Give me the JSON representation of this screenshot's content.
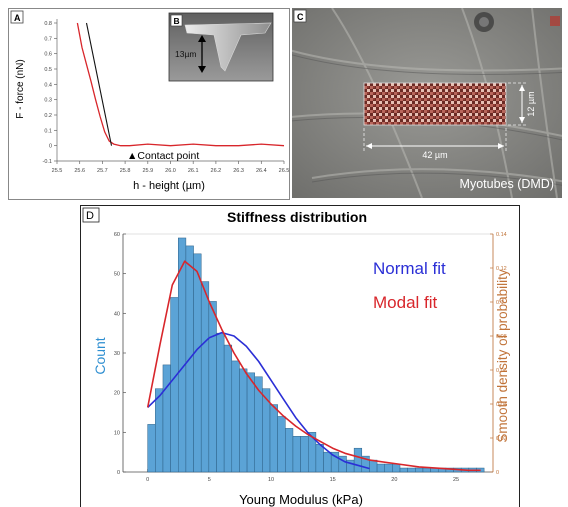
{
  "figure": {
    "panelA": {
      "label": "A",
      "ylabel": "F - force (nN)",
      "xlabel": "h - height (µm)",
      "annotation": "▲Contact point",
      "xticks": [
        "25.5",
        "25.6",
        "25.7",
        "25.8",
        "25.9",
        "26.0",
        "26.1",
        "26.2",
        "26.3",
        "26.4",
        "26.5"
      ],
      "yticks": [
        "-0.1",
        "0",
        "0.1",
        "0.2",
        "0.3",
        "0.4",
        "0.5",
        "0.6",
        "0.7",
        "0.8"
      ],
      "inset": {
        "label": "B",
        "scale_text": "13µm"
      }
    },
    "panelC": {
      "label": "C",
      "width_label": "42 µm",
      "height_label": "12 µm",
      "caption": "Myotubes (DMD)"
    },
    "panelD": {
      "label": "D",
      "legend": [
        "Normal fit",
        "Modal fit"
      ]
    }
  },
  "colors": {
    "bar": "#5ba3d6",
    "bar_edge": "#2c5f85",
    "normal_fit": "#2b2fd6",
    "modal_fit": "#d8262b",
    "left_axis_label": "#2f8fd1",
    "right_axis_label": "#c1743a"
  },
  "chart_data": [
    {
      "type": "line",
      "panel": "A",
      "xlabel": "h - height (µm)",
      "ylabel": "F - force (nN)",
      "xlim": [
        25.5,
        26.5
      ],
      "ylim": [
        -0.1,
        0.8
      ],
      "series": [
        {
          "color": "#d8262b",
          "x": [
            25.59,
            25.61,
            25.63,
            25.65,
            25.67,
            25.69,
            25.71,
            25.73,
            25.75,
            25.78,
            25.82,
            25.9,
            26.0,
            26.1,
            26.2,
            26.3,
            26.4,
            26.5
          ],
          "y": [
            0.8,
            0.64,
            0.53,
            0.42,
            0.3,
            0.19,
            0.09,
            0.03,
            0.01,
            0.0,
            0.0,
            0.01,
            0.0,
            0.01,
            0.0,
            0.0,
            0.01,
            0.0
          ]
        },
        {
          "color": "#111111",
          "x": [
            25.63,
            25.74
          ],
          "y": [
            0.8,
            0.0
          ]
        }
      ]
    },
    {
      "type": "bar",
      "panel": "D",
      "title": "Stiffness distribution",
      "xlabel": "Young Modulus (kPa)",
      "ylabel": "Count",
      "ylabel_right": "Smooth density of probability",
      "xlim": [
        -2,
        28
      ],
      "ylim": [
        0,
        60
      ],
      "ylim_right": [
        0,
        0.14
      ],
      "xticks": [
        0,
        5,
        10,
        15,
        20,
        25
      ],
      "yticks": [
        0,
        10,
        20,
        30,
        40,
        50,
        60
      ],
      "yticks_right": [
        0,
        0.02,
        0.04,
        0.06,
        0.08,
        0.1,
        0.12,
        0.14
      ],
      "bin_width": 0.62,
      "bin_start": 0,
      "values": [
        12,
        21,
        27,
        44,
        59,
        57,
        55,
        48,
        43,
        35,
        32,
        28,
        26,
        25,
        24,
        21,
        17,
        14,
        11,
        9,
        9,
        10,
        7,
        5,
        5,
        4,
        3,
        6,
        4,
        3,
        2,
        2,
        2,
        1,
        1,
        1,
        1,
        1,
        1,
        1,
        1,
        1,
        1,
        1
      ],
      "series": [
        {
          "name": "Normal fit",
          "color": "#2b2fd6",
          "x": [
            0,
            1,
            2,
            3,
            4,
            5,
            6,
            7,
            8,
            9,
            10,
            11,
            12,
            13,
            14,
            15,
            16,
            17,
            18
          ],
          "y": [
            0.038,
            0.045,
            0.054,
            0.063,
            0.072,
            0.079,
            0.082,
            0.08,
            0.074,
            0.065,
            0.054,
            0.043,
            0.032,
            0.023,
            0.016,
            0.01,
            0.006,
            0.004,
            0.002
          ]
        },
        {
          "name": "Modal fit",
          "color": "#d8262b",
          "x": [
            0,
            1,
            2,
            3,
            4,
            5,
            6,
            7,
            8,
            9,
            10,
            11,
            12,
            13,
            14,
            15,
            16,
            17,
            18,
            20,
            22,
            24,
            26,
            27
          ],
          "y": [
            0.038,
            0.075,
            0.11,
            0.124,
            0.118,
            0.1,
            0.084,
            0.07,
            0.058,
            0.048,
            0.04,
            0.033,
            0.027,
            0.022,
            0.018,
            0.014,
            0.011,
            0.009,
            0.007,
            0.005,
            0.003,
            0.002,
            0.001,
            0.001
          ]
        }
      ]
    }
  ]
}
